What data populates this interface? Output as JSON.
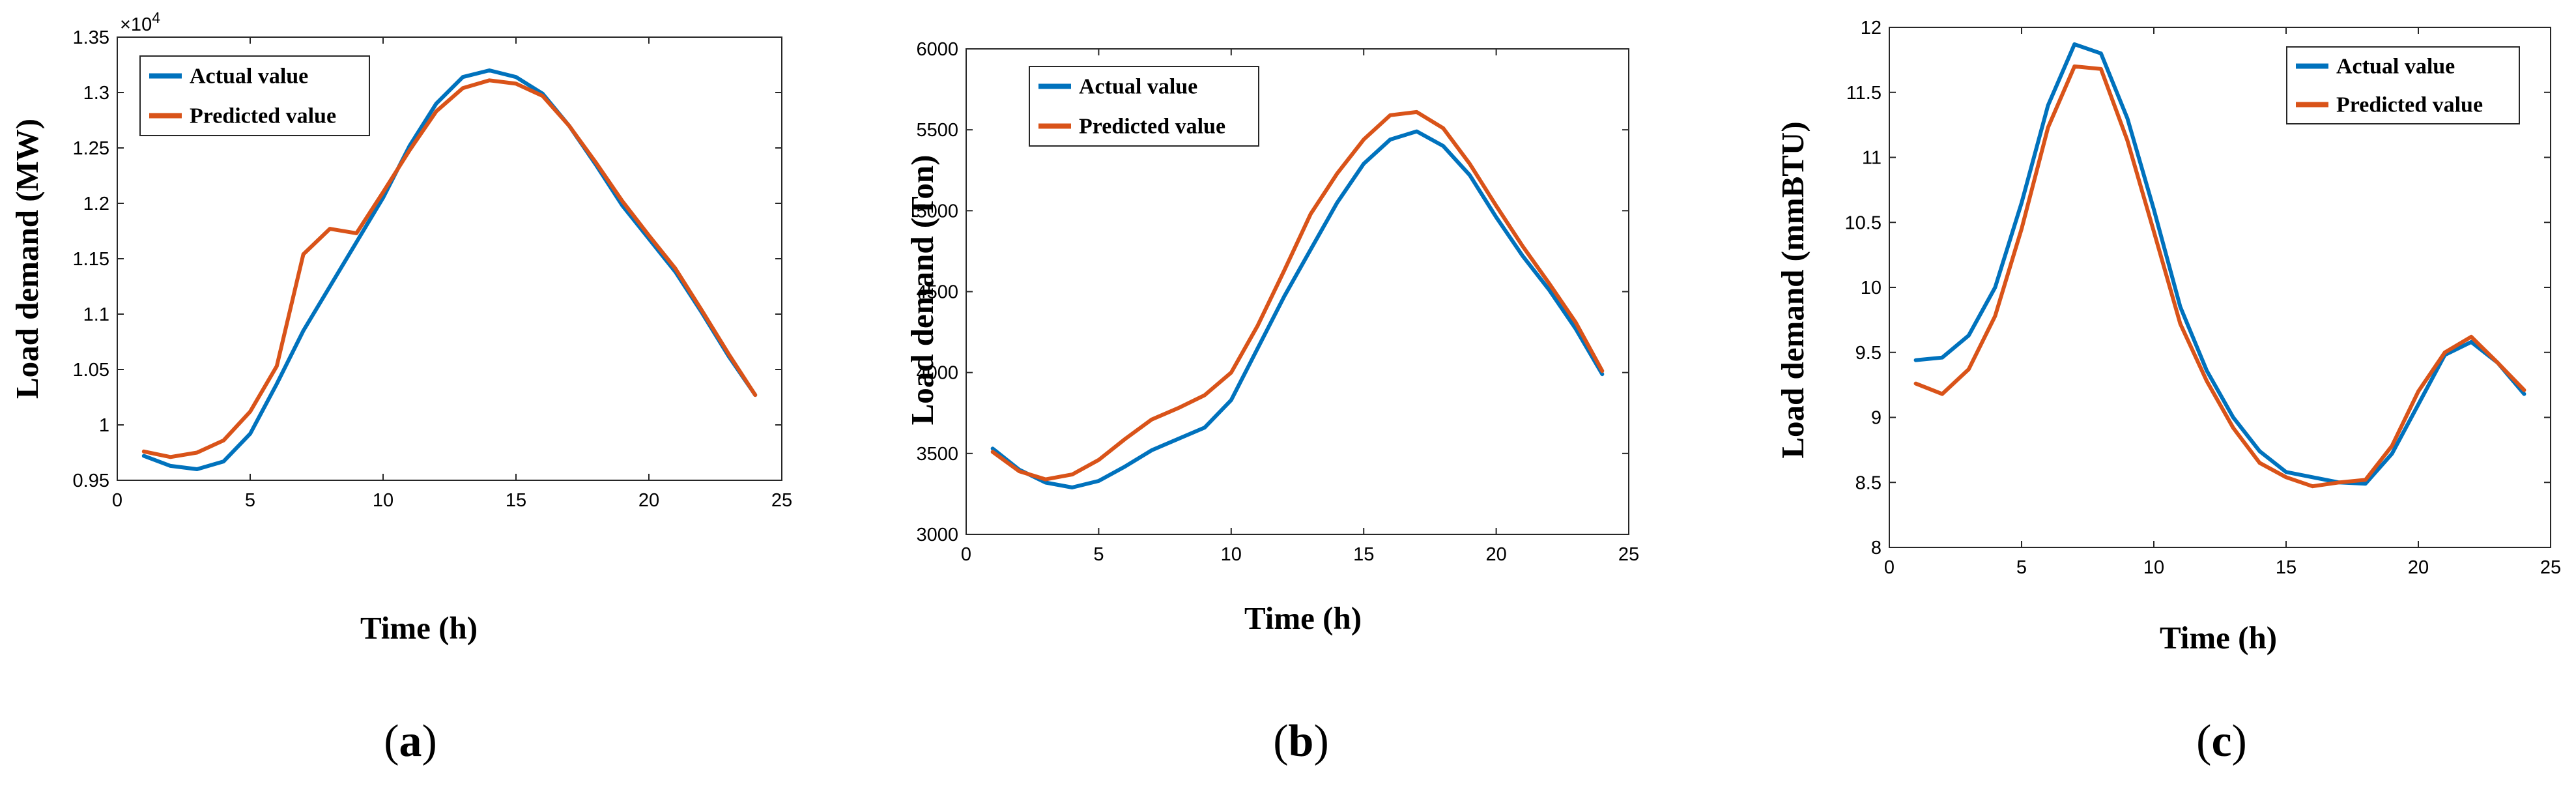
{
  "chart_data": [
    {
      "type": "line",
      "panel": "a",
      "caption": {
        "open": "(",
        "letter": "a",
        "close": ")"
      },
      "xlabel": "Time (h)",
      "ylabel": "Load demand (MW)",
      "y_exponent": "×10",
      "y_exponent_power": "4",
      "xlim": [
        0,
        25
      ],
      "ylim": [
        0.95,
        1.35
      ],
      "xticks": [
        0,
        5,
        10,
        15,
        20,
        25
      ],
      "xtick_labels": [
        "0",
        "5",
        "10",
        "15",
        "20",
        "25"
      ],
      "yticks": [
        0.95,
        1.0,
        1.05,
        1.1,
        1.15,
        1.2,
        1.25,
        1.3,
        1.35
      ],
      "ytick_labels": [
        "0.95",
        "1",
        "1.05",
        "1.1",
        "1.15",
        "1.2",
        "1.25",
        "1.3",
        "1.35"
      ],
      "legend_position": "top-left",
      "x": [
        1,
        2,
        3,
        4,
        5,
        6,
        7,
        8,
        9,
        10,
        11,
        12,
        13,
        14,
        15,
        16,
        17,
        18,
        19,
        20,
        21,
        22,
        23,
        24
      ],
      "series": [
        {
          "name": "Actual value",
          "color": "#0072bd",
          "values": [
            0.972,
            0.963,
            0.96,
            0.967,
            0.992,
            1.037,
            1.085,
            1.125,
            1.165,
            1.205,
            1.252,
            1.29,
            1.314,
            1.32,
            1.314,
            1.299,
            1.27,
            1.235,
            1.198,
            1.168,
            1.138,
            1.101,
            1.062,
            1.027
          ]
        },
        {
          "name": "Predicted value",
          "color": "#d95319",
          "values": [
            0.976,
            0.971,
            0.975,
            0.986,
            1.012,
            1.053,
            1.154,
            1.177,
            1.173,
            1.21,
            1.248,
            1.283,
            1.304,
            1.311,
            1.308,
            1.297,
            1.27,
            1.237,
            1.202,
            1.171,
            1.141,
            1.103,
            1.064,
            1.027
          ]
        }
      ]
    },
    {
      "type": "line",
      "panel": "b",
      "caption": {
        "open": "(",
        "letter": "b",
        "close": ")"
      },
      "xlabel": "Time (h)",
      "ylabel": "Load demand (Ton)",
      "xlim": [
        0,
        25
      ],
      "ylim": [
        3000,
        6000
      ],
      "xticks": [
        0,
        5,
        10,
        15,
        20,
        25
      ],
      "xtick_labels": [
        "0",
        "5",
        "10",
        "15",
        "20",
        "25"
      ],
      "yticks": [
        3000,
        3500,
        4000,
        4500,
        5000,
        5500,
        6000
      ],
      "ytick_labels": [
        "3000",
        "3500",
        "4000",
        "4500",
        "5000",
        "5500",
        "6000"
      ],
      "legend_position": "top-left",
      "x": [
        1,
        2,
        3,
        4,
        5,
        6,
        7,
        8,
        9,
        10,
        11,
        12,
        13,
        14,
        15,
        16,
        17,
        18,
        19,
        20,
        21,
        22,
        23,
        24
      ],
      "series": [
        {
          "name": "Actual value",
          "color": "#0072bd",
          "values": [
            3530,
            3400,
            3320,
            3290,
            3330,
            3420,
            3520,
            3590,
            3660,
            3830,
            4150,
            4470,
            4760,
            5050,
            5290,
            5440,
            5490,
            5400,
            5220,
            4960,
            4720,
            4510,
            4270,
            3990
          ]
        },
        {
          "name": "Predicted value",
          "color": "#d95319",
          "values": [
            3510,
            3390,
            3340,
            3370,
            3460,
            3590,
            3710,
            3780,
            3860,
            4000,
            4290,
            4630,
            4980,
            5230,
            5440,
            5590,
            5610,
            5510,
            5290,
            5030,
            4780,
            4550,
            4310,
            4010
          ]
        }
      ]
    },
    {
      "type": "line",
      "panel": "c",
      "caption": {
        "open": "(",
        "letter": "c",
        "close": ")"
      },
      "xlabel": "Time (h)",
      "ylabel": "Load demand (mmBTU)",
      "xlim": [
        0,
        25
      ],
      "ylim": [
        8,
        12
      ],
      "xticks": [
        0,
        5,
        10,
        15,
        20,
        25
      ],
      "xtick_labels": [
        "0",
        "5",
        "10",
        "15",
        "20",
        "25"
      ],
      "yticks": [
        8,
        8.5,
        9,
        9.5,
        10,
        10.5,
        11,
        11.5,
        12
      ],
      "ytick_labels": [
        "8",
        "8.5",
        "9",
        "9.5",
        "10",
        "10.5",
        "11",
        "11.5",
        "12"
      ],
      "legend_position": "top-right",
      "x": [
        1,
        2,
        3,
        4,
        5,
        6,
        7,
        8,
        9,
        10,
        11,
        12,
        13,
        14,
        15,
        16,
        17,
        18,
        19,
        20,
        21,
        22,
        23,
        24
      ],
      "series": [
        {
          "name": "Actual value",
          "color": "#0072bd",
          "values": [
            9.44,
            9.46,
            9.63,
            10.0,
            10.65,
            11.4,
            11.87,
            11.8,
            11.3,
            10.6,
            9.85,
            9.36,
            9.0,
            8.74,
            8.58,
            8.54,
            8.5,
            8.49,
            8.72,
            9.1,
            9.48,
            9.58,
            9.42,
            9.18
          ]
        },
        {
          "name": "Predicted value",
          "color": "#d95319",
          "values": [
            9.26,
            9.18,
            9.37,
            9.78,
            10.45,
            11.23,
            11.7,
            11.68,
            11.13,
            10.43,
            9.72,
            9.28,
            8.92,
            8.65,
            8.54,
            8.47,
            8.5,
            8.52,
            8.78,
            9.2,
            9.5,
            9.62,
            9.42,
            9.21
          ]
        }
      ]
    }
  ]
}
